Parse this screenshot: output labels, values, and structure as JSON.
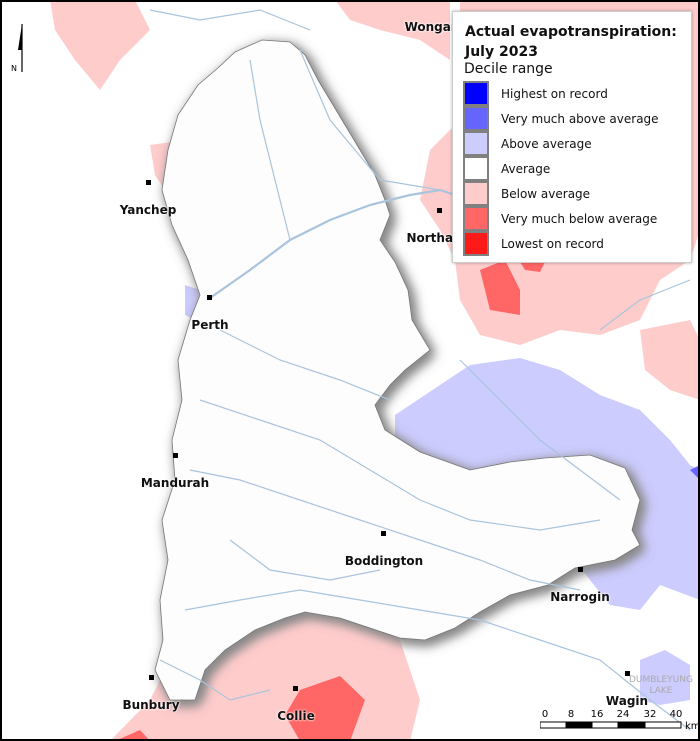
{
  "legend": {
    "title_line1": "Actual evapotranspiration:",
    "title_line2": "July 2023",
    "subtitle": "Decile range",
    "items": [
      {
        "label": "Highest on record",
        "color": "#0000ff"
      },
      {
        "label": "Very much above average",
        "color": "#6666ff"
      },
      {
        "label": "Above average",
        "color": "#ccccff"
      },
      {
        "label": "Average",
        "color": "#ffffff"
      },
      {
        "label": "Below average",
        "color": "#ffcccc"
      },
      {
        "label": "Very much below average",
        "color": "#ff6666"
      },
      {
        "label": "Lowest on record",
        "color": "#ff1a1a"
      }
    ]
  },
  "north_arrow": {
    "label": "N"
  },
  "towns": [
    {
      "name": "Wongan"
    },
    {
      "name": "Yanchep"
    },
    {
      "name": "Northam"
    },
    {
      "name": "Perth"
    },
    {
      "name": "Mandurah"
    },
    {
      "name": "Boddington"
    },
    {
      "name": "Narrogin"
    },
    {
      "name": "Bunbury"
    },
    {
      "name": "Collie"
    },
    {
      "name": "Wagin"
    }
  ],
  "lake_label": [
    "DUMBLEYUNG",
    "LAKE"
  ],
  "scale_bar": {
    "ticks": [
      "0",
      "8",
      "16",
      "24",
      "32",
      "40"
    ],
    "unit": "km"
  }
}
